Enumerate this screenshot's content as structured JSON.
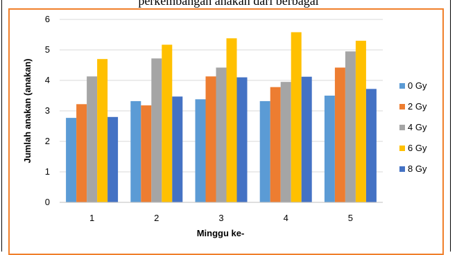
{
  "caption": {
    "text": "perkembangan anakan dari berbagai"
  },
  "chart_data": {
    "type": "bar",
    "title": "",
    "xlabel": "Minggu ke-",
    "ylabel": "Jumlah anakan (anakan)",
    "ylim": [
      0,
      6
    ],
    "yticks": [
      "0",
      "1",
      "2",
      "3",
      "4",
      "5",
      "6"
    ],
    "categories": [
      "1",
      "2",
      "3",
      "4",
      "5"
    ],
    "grid": true,
    "legend_position": "right",
    "series": [
      {
        "name": "0 Gy",
        "color": "#5b9bd5",
        "values": [
          2.77,
          3.32,
          3.38,
          3.32,
          3.5
        ]
      },
      {
        "name": "2 Gy",
        "color": "#ed7d31",
        "values": [
          3.22,
          3.18,
          4.13,
          3.78,
          4.42
        ]
      },
      {
        "name": "4 Gy",
        "color": "#a5a5a5",
        "values": [
          4.13,
          4.72,
          4.42,
          3.95,
          4.95
        ]
      },
      {
        "name": "6 Gy",
        "color": "#ffc000",
        "values": [
          4.7,
          5.17,
          5.38,
          5.58,
          5.3
        ]
      },
      {
        "name": "8 Gy",
        "color": "#4472c4",
        "values": [
          2.8,
          3.47,
          4.1,
          4.12,
          3.72
        ]
      }
    ]
  }
}
